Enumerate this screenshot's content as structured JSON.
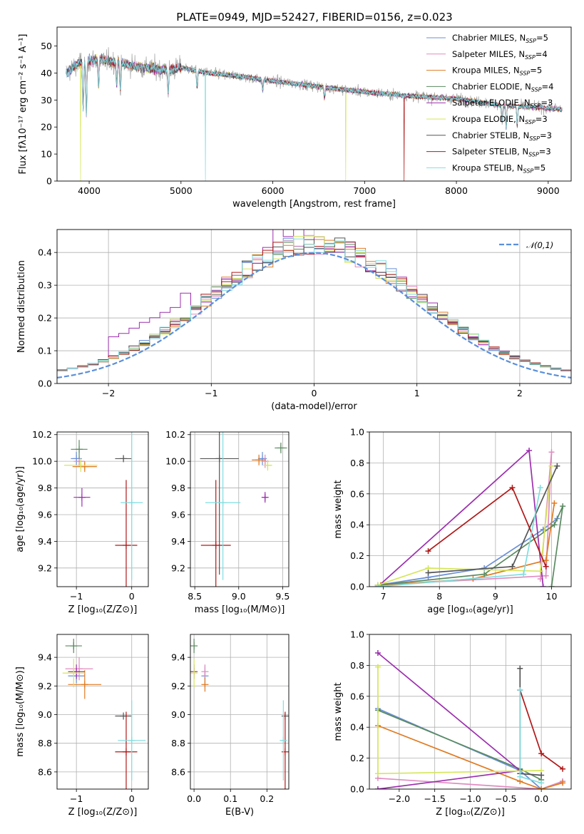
{
  "title": "PLATE=0949, MJD=52427, FIBERID=0156, z=0.023",
  "models": [
    {
      "label": "Chabrier MILES, N_SSP=5",
      "short": "Chabrier MILES, N",
      "n": "=5",
      "color": "#6a8fd6"
    },
    {
      "label": "Salpeter MILES, N_SSP=4",
      "short": "Salpeter MILES, N",
      "n": "=4",
      "color": "#e08cc0"
    },
    {
      "label": "Kroupa MILES, N_SSP=5",
      "short": "Kroupa MILES, N",
      "n": "=5",
      "color": "#e07b22"
    },
    {
      "label": "Chabrier ELODIE, N_SSP=4",
      "short": "Chabrier ELODIE, N",
      "n": "=4",
      "color": "#5a8a60"
    },
    {
      "label": "Salpeter ELODIE, N_SSP=3",
      "short": "Salpeter ELODIE, N",
      "n": "=3",
      "color": "#9c2fae"
    },
    {
      "label": "Kroupa ELODIE, N_SSP=3",
      "short": "Kroupa ELODIE, N",
      "n": "=3",
      "color": "#d5e65a"
    },
    {
      "label": "Chabrier STELIB, N_SSP=3",
      "short": "Chabrier STELIB, N",
      "n": "=3",
      "color": "#555555"
    },
    {
      "label": "Salpeter STELIB, N_SSP=3",
      "short": "Salpeter STELIB, N",
      "n": "=3",
      "color": "#b01818"
    },
    {
      "label": "Kroupa STELIB, N_SSP=5",
      "short": "Kroupa STELIB, N",
      "n": "=5",
      "color": "#7fdde0"
    }
  ],
  "ssp_sub": "SSP",
  "chart_data": [
    {
      "id": "spectrum",
      "type": "line",
      "xlabel": "wavelength [Angstrom, rest frame]",
      "ylabel": "Flux [fλ10⁻¹⁷ erg cm⁻² s⁻¹ A⁻¹]",
      "xlim": [
        3650,
        9250
      ],
      "ylim": [
        0,
        57
      ],
      "xticks": [
        4000,
        5000,
        6000,
        7000,
        8000,
        9000
      ],
      "yticks": [
        0,
        10,
        20,
        30,
        40,
        50
      ],
      "continuum": [
        [
          3750,
          40
        ],
        [
          3900,
          44
        ],
        [
          4100,
          45
        ],
        [
          4300,
          44
        ],
        [
          4600,
          42
        ],
        [
          4850,
          41
        ],
        [
          5000,
          42
        ],
        [
          5300,
          40
        ],
        [
          5700,
          38.5
        ],
        [
          6000,
          37
        ],
        [
          6500,
          35
        ],
        [
          7000,
          33
        ],
        [
          7500,
          31.5
        ],
        [
          8000,
          30.5
        ],
        [
          8500,
          28
        ],
        [
          9000,
          27
        ],
        [
          9150,
          26.5
        ]
      ],
      "absorption_lines": [
        [
          3934,
          18
        ],
        [
          3969,
          20
        ],
        [
          4102,
          10
        ],
        [
          4300,
          8
        ],
        [
          4340,
          10
        ],
        [
          4861,
          8
        ],
        [
          5175,
          6
        ],
        [
          5890,
          4
        ],
        [
          6563,
          4
        ],
        [
          8498,
          6
        ],
        [
          8542,
          8
        ],
        [
          8662,
          7
        ]
      ],
      "deep_drops": [
        {
          "x": 3905,
          "to": 0,
          "model": 5
        },
        {
          "x": 5265,
          "to": 0,
          "model": 8
        },
        {
          "x": 6795,
          "to": 0,
          "model": 5
        },
        {
          "x": 7430,
          "to": 0,
          "model": 7
        }
      ],
      "observed_color": "#aaaaaa"
    },
    {
      "id": "residuals",
      "type": "line",
      "xlabel": "(data-model)/error",
      "ylabel": "Normed distribution",
      "xlim": [
        -2.5,
        2.5
      ],
      "ylim": [
        0,
        0.47
      ],
      "xticks": [
        -2,
        -1,
        0,
        1,
        2
      ],
      "yticks": [
        0.0,
        0.1,
        0.2,
        0.3,
        0.4
      ],
      "bin_width": 0.1,
      "legend": "𝒩(0,1)",
      "gaussian_color": "#5b8fd9"
    },
    {
      "id": "age_vs_z",
      "type": "scatter",
      "xlabel": "Z [log₁₀(Z/Z⊙)]",
      "ylabel": "age  [log₁₀(age/yr)]",
      "xlim": [
        -1.35,
        0.3
      ],
      "ylim": [
        9.06,
        10.22
      ],
      "xticks": [
        -1,
        0
      ],
      "yticks": [
        9.2,
        9.4,
        9.6,
        9.8,
        10.0,
        10.2
      ],
      "points": [
        {
          "model": 0,
          "x": -1.0,
          "y": 10.02,
          "xerr": 0.1,
          "yerr": 0.05
        },
        {
          "model": 1,
          "x": -0.95,
          "y": 10.0,
          "xerr": 0.1,
          "yerr": 0.04
        },
        {
          "model": 2,
          "x": -0.85,
          "y": 9.96,
          "xerr": 0.22,
          "yerr": 0.04
        },
        {
          "model": 3,
          "x": -0.95,
          "y": 10.09,
          "xerr": 0.15,
          "yerr": 0.07
        },
        {
          "model": 4,
          "x": -0.9,
          "y": 9.73,
          "xerr": 0.15,
          "yerr": 0.07
        },
        {
          "model": 5,
          "x": -0.92,
          "y": 9.97,
          "xerr": 0.3,
          "yerr": 0.05
        },
        {
          "model": 6,
          "x": -0.15,
          "y": 10.02,
          "xerr": 0.15,
          "yerr": 0.02
        },
        {
          "model": 7,
          "x": -0.1,
          "y": 9.37,
          "xerr": 0.2,
          "yerr": 0.49
        },
        {
          "model": 8,
          "x": 0.0,
          "y": 9.69,
          "xerr": 0.2,
          "yerr": 0.58
        }
      ]
    },
    {
      "id": "age_vs_mass",
      "type": "scatter",
      "xlabel": "mass [log₁₀(M/M⊙)]",
      "ylabel": "",
      "xlim": [
        8.45,
        9.57
      ],
      "ylim": [
        9.06,
        10.22
      ],
      "xticks": [
        8.5,
        9.0,
        9.5
      ],
      "yticks": [
        9.2,
        9.4,
        9.6,
        9.8,
        10.0,
        10.2
      ],
      "points": [
        {
          "model": 0,
          "x": 9.27,
          "y": 10.02,
          "xerr": 0.05,
          "yerr": 0.05
        },
        {
          "model": 1,
          "x": 9.3,
          "y": 10.0,
          "xerr": 0.04,
          "yerr": 0.05
        },
        {
          "model": 2,
          "x": 9.23,
          "y": 10.01,
          "xerr": 0.08,
          "yerr": 0.04
        },
        {
          "model": 3,
          "x": 9.48,
          "y": 10.1,
          "xerr": 0.07,
          "yerr": 0.04
        },
        {
          "model": 4,
          "x": 9.3,
          "y": 9.73,
          "xerr": 0.03,
          "yerr": 0.04
        },
        {
          "model": 5,
          "x": 9.33,
          "y": 9.97,
          "xerr": 0.05,
          "yerr": 0.04
        },
        {
          "model": 6,
          "x": 8.78,
          "y": 10.02,
          "xerr": 0.22,
          "yerr": 0.87
        },
        {
          "model": 7,
          "x": 8.74,
          "y": 9.37,
          "xerr": 0.17,
          "yerr": 0.49
        },
        {
          "model": 8,
          "x": 8.82,
          "y": 9.69,
          "xerr": 0.2,
          "yerr": 0.58
        }
      ]
    },
    {
      "id": "weight_vs_age",
      "type": "line",
      "xlabel": "age  [log₁₀(age/yr)]",
      "ylabel": "mass weight",
      "xlim": [
        6.75,
        10.35
      ],
      "ylim": [
        0,
        1.0
      ],
      "xticks": [
        7,
        8,
        9,
        10
      ],
      "yticks": [
        0.0,
        0.2,
        0.4,
        0.6,
        0.8,
        1.0
      ],
      "series": [
        {
          "model": 0,
          "x": [
            6.9,
            7.8,
            8.8,
            9.85,
            10.1
          ],
          "y": [
            0.01,
            0.06,
            0.12,
            0.37,
            0.44
          ]
        },
        {
          "model": 1,
          "x": [
            6.9,
            9.9,
            10.0,
            9.8
          ],
          "y": [
            0.01,
            0.07,
            0.87,
            0.05
          ]
        },
        {
          "model": 2,
          "x": [
            6.95,
            8.6,
            9.9,
            10.05
          ],
          "y": [
            0.01,
            0.05,
            0.17,
            0.54
          ]
        },
        {
          "model": 3,
          "x": [
            6.9,
            8.8,
            10.05,
            10.2,
            10.0
          ],
          "y": [
            0.01,
            0.08,
            0.4,
            0.52,
            0.0
          ]
        },
        {
          "model": 4,
          "x": [
            6.9,
            9.6,
            9.85
          ],
          "y": [
            0.0,
            0.88,
            0.0
          ]
        },
        {
          "model": 5,
          "x": [
            6.9,
            7.8,
            9.8,
            10.0
          ],
          "y": [
            0.01,
            0.12,
            0.1,
            0.78
          ]
        },
        {
          "model": 6,
          "x": [
            7.8,
            9.3,
            10.1
          ],
          "y": [
            0.09,
            0.13,
            0.78
          ]
        },
        {
          "model": 7,
          "x": [
            7.8,
            9.3,
            9.9
          ],
          "y": [
            0.23,
            0.64,
            0.13
          ]
        },
        {
          "model": 8,
          "x": [
            6.9,
            9.5,
            9.8
          ],
          "y": [
            0.0,
            0.08,
            0.64
          ]
        }
      ]
    },
    {
      "id": "mass_vs_z",
      "type": "scatter",
      "xlabel": "Z [log₁₀(Z/Z⊙)]",
      "ylabel": "mass [log₁₀(M/M⊙)]",
      "xlim": [
        -1.35,
        0.3
      ],
      "ylim": [
        8.48,
        9.56
      ],
      "xticks": [
        -1,
        0
      ],
      "yticks": [
        8.6,
        8.8,
        9.0,
        9.2,
        9.4
      ],
      "points": [
        {
          "model": 0,
          "x": -1.0,
          "y": 9.27,
          "xerr": 0.15,
          "yerr": 0.05
        },
        {
          "model": 1,
          "x": -0.95,
          "y": 9.32,
          "xerr": 0.25,
          "yerr": 0.08
        },
        {
          "model": 2,
          "x": -0.85,
          "y": 9.21,
          "xerr": 0.3,
          "yerr": 0.1
        },
        {
          "model": 3,
          "x": -1.05,
          "y": 9.48,
          "xerr": 0.15,
          "yerr": 0.05
        },
        {
          "model": 4,
          "x": -1.0,
          "y": 9.3,
          "xerr": 0.15,
          "yerr": 0.05
        },
        {
          "model": 5,
          "x": -1.05,
          "y": 9.29,
          "xerr": 0.2,
          "yerr": 0.1
        },
        {
          "model": 6,
          "x": -0.15,
          "y": 8.99,
          "xerr": 0.15,
          "yerr": 0.0
        },
        {
          "model": 7,
          "x": -0.1,
          "y": 8.74,
          "xerr": 0.2,
          "yerr": 0.28
        },
        {
          "model": 8,
          "x": 0.0,
          "y": 8.82,
          "xerr": 0.25,
          "yerr": 0.28
        }
      ]
    },
    {
      "id": "mass_vs_ebv",
      "type": "scatter",
      "xlabel": "E(B-V)",
      "ylabel": "",
      "xlim": [
        -0.01,
        0.26
      ],
      "ylim": [
        8.48,
        9.56
      ],
      "xticks": [
        0.0,
        0.1,
        0.2
      ],
      "yticks": [
        8.6,
        8.8,
        9.0,
        9.2,
        9.4
      ],
      "points": [
        {
          "model": 0,
          "x": 0.03,
          "y": 9.27,
          "xerr": 0.0,
          "yerr": 0.07
        },
        {
          "model": 1,
          "x": 0.03,
          "y": 9.3,
          "xerr": 0.0,
          "yerr": 0.05
        },
        {
          "model": 2,
          "x": 0.03,
          "y": 9.21,
          "xerr": 0.0,
          "yerr": 0.05
        },
        {
          "model": 3,
          "x": 0.0,
          "y": 9.48,
          "xerr": 0.0,
          "yerr": 0.05
        },
        {
          "model": 4,
          "x": 0.0,
          "y": 9.3,
          "xerr": 0.0,
          "yerr": 0.05
        },
        {
          "model": 5,
          "x": 0.0,
          "y": 9.29,
          "xerr": 0.0,
          "yerr": 0.1
        },
        {
          "model": 6,
          "x": 0.25,
          "y": 8.99,
          "xerr": 0.0,
          "yerr": 0.0
        },
        {
          "model": 7,
          "x": 0.25,
          "y": 8.74,
          "xerr": 0.0,
          "yerr": 0.28
        },
        {
          "model": 8,
          "x": 0.245,
          "y": 8.82,
          "xerr": 0.0,
          "yerr": 0.28
        }
      ]
    },
    {
      "id": "weight_vs_z",
      "type": "line",
      "xlabel": "Z [log₁₀(Z/Z⊙)]",
      "ylabel": "mass weight",
      "xlim": [
        -2.42,
        0.42
      ],
      "ylim": [
        0,
        1.0
      ],
      "xticks": [
        -2.0,
        -1.5,
        -1.0,
        -0.5,
        0.0
      ],
      "yticks": [
        0.0,
        0.2,
        0.4,
        0.6,
        0.8,
        1.0
      ],
      "series": [
        {
          "model": 0,
          "x": [
            -2.3,
            -0.3,
            0.0,
            0.3
          ],
          "y": [
            0.52,
            0.12,
            0.0,
            0.05
          ]
        },
        {
          "model": 1,
          "x": [
            -2.3,
            0.0,
            0.3
          ],
          "y": [
            0.07,
            0.0,
            0.05
          ]
        },
        {
          "model": 2,
          "x": [
            -2.3,
            -0.3,
            0.0,
            0.3
          ],
          "y": [
            0.41,
            0.05,
            0.0,
            0.04
          ]
        },
        {
          "model": 3,
          "x": [
            -2.3,
            -0.3,
            0.0
          ],
          "y": [
            0.51,
            0.13,
            0.06
          ]
        },
        {
          "model": 4,
          "x": [
            -2.3,
            -0.3,
            -2.3
          ],
          "y": [
            0.88,
            0.12,
            0.0
          ]
        },
        {
          "model": 5,
          "x": [
            -2.3,
            -2.3,
            0.0
          ],
          "y": [
            0.79,
            0.1,
            0.12
          ]
        },
        {
          "model": 6,
          "x": [
            -0.3,
            -0.3,
            0.0
          ],
          "y": [
            0.78,
            0.1,
            0.09
          ]
        },
        {
          "model": 7,
          "x": [
            -0.3,
            0.0,
            0.3
          ],
          "y": [
            0.64,
            0.23,
            0.13
          ]
        },
        {
          "model": 8,
          "x": [
            -0.3,
            -0.3,
            0.0
          ],
          "y": [
            0.64,
            0.08,
            0.04
          ]
        }
      ]
    }
  ]
}
